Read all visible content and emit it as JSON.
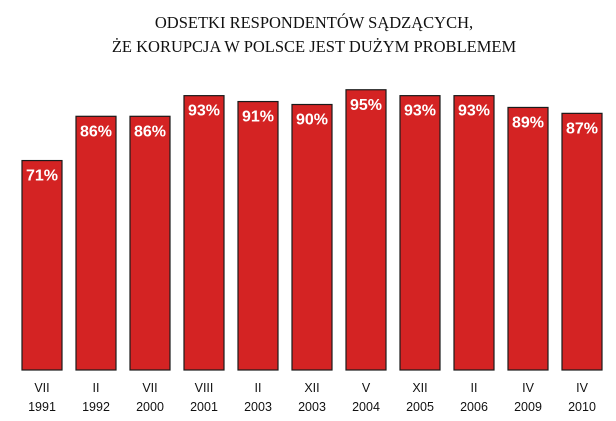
{
  "chart_data": {
    "type": "bar",
    "title_lines": [
      "ODSETKI RESPONDENTÓW SĄDZĄCYCH,",
      "ŻE KORUPCJA W POLSCE JEST DUŻYM PROBLEMEM"
    ],
    "categories": [
      {
        "month": "VII",
        "year": "1991"
      },
      {
        "month": "II",
        "year": "1992"
      },
      {
        "month": "VII",
        "year": "2000"
      },
      {
        "month": "VIII",
        "year": "2001"
      },
      {
        "month": "II",
        "year": "2003"
      },
      {
        "month": "XII",
        "year": "2003"
      },
      {
        "month": "V",
        "year": "2004"
      },
      {
        "month": "XII",
        "year": "2005"
      },
      {
        "month": "II",
        "year": "2006"
      },
      {
        "month": "IV",
        "year": "2009"
      },
      {
        "month": "IV",
        "year": "2010"
      }
    ],
    "values": [
      71,
      86,
      86,
      93,
      91,
      90,
      95,
      93,
      93,
      89,
      87
    ],
    "value_labels": [
      "71%",
      "86%",
      "86%",
      "93%",
      "91%",
      "90%",
      "95%",
      "93%",
      "93%",
      "89%",
      "87%"
    ],
    "unit": "%",
    "ylim": [
      0,
      100
    ],
    "grid": false,
    "legend": "none",
    "colors": {
      "bar_fill": "#d42323",
      "bar_stroke": "#1a1a1a",
      "label_text": "#ffffff"
    }
  }
}
